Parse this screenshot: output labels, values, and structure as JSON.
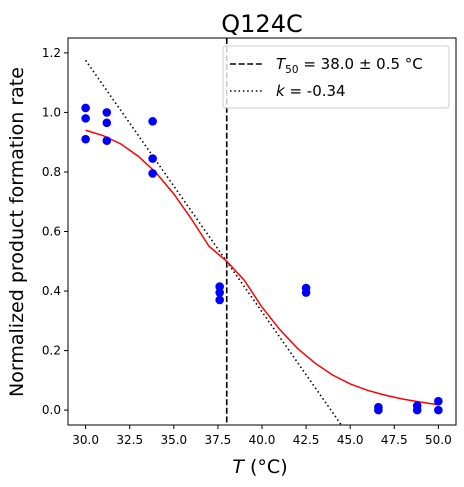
{
  "chart_data": {
    "type": "scatter",
    "title": "Q124C",
    "xlabel_italic": "T",
    "xlabel_unit": " (°C)",
    "ylabel": "Normalized product formation rate",
    "xlim": [
      29.0,
      51.0
    ],
    "ylim": [
      -0.05,
      1.25
    ],
    "xticks": [
      30.0,
      32.5,
      35.0,
      37.5,
      40.0,
      42.5,
      45.0,
      47.5,
      50.0
    ],
    "xtick_labels": [
      "30.0",
      "32.5",
      "35.0",
      "37.5",
      "40.0",
      "42.5",
      "45.0",
      "47.5",
      "50.0"
    ],
    "yticks": [
      0.0,
      0.2,
      0.4,
      0.6,
      0.8,
      1.0,
      1.2
    ],
    "ytick_labels": [
      "0.0",
      "0.2",
      "0.4",
      "0.6",
      "0.8",
      "1.0",
      "1.2"
    ],
    "grid": false,
    "legend_position": "top-right",
    "points": {
      "color": "#0000ff",
      "x": [
        30.0,
        30.0,
        30.0,
        31.2,
        31.2,
        31.2,
        33.8,
        33.8,
        33.8,
        37.6,
        37.6,
        37.6,
        42.5,
        42.5,
        46.6,
        46.6,
        48.8,
        48.8,
        50.0,
        50.0
      ],
      "y": [
        1.015,
        0.98,
        0.91,
        1.0,
        0.965,
        0.905,
        0.97,
        0.845,
        0.795,
        0.415,
        0.395,
        0.37,
        0.41,
        0.395,
        0.01,
        0.0,
        0.015,
        0.0,
        0.03,
        0.0
      ]
    },
    "fit_curve": {
      "color": "#ff0000",
      "x": [
        30.0,
        31.0,
        32.0,
        33.0,
        34.0,
        35.0,
        36.0,
        37.0,
        38.0,
        39.0,
        40.0,
        41.0,
        42.0,
        43.0,
        44.0,
        45.0,
        46.0,
        47.0,
        48.0,
        49.0,
        50.0
      ],
      "y": [
        0.94,
        0.922,
        0.894,
        0.852,
        0.797,
        0.726,
        0.642,
        0.55,
        0.5,
        0.436,
        0.346,
        0.271,
        0.208,
        0.158,
        0.118,
        0.088,
        0.066,
        0.05,
        0.037,
        0.027,
        0.018
      ]
    },
    "t50_line": {
      "x": 38.0,
      "style": "dashed",
      "color": "#000000"
    },
    "slope_line": {
      "x": [
        30.0,
        44.5
      ],
      "y": [
        1.175,
        -0.05
      ],
      "style": "dotted",
      "color": "#000000"
    },
    "legend": [
      {
        "style": "dashed",
        "prefix": "T",
        "sub": "50",
        "suffix": " = 38.0 ± 0.5 °C"
      },
      {
        "style": "dotted",
        "prefix": "k",
        "sub": "",
        "suffix": " = -0.34"
      }
    ]
  }
}
